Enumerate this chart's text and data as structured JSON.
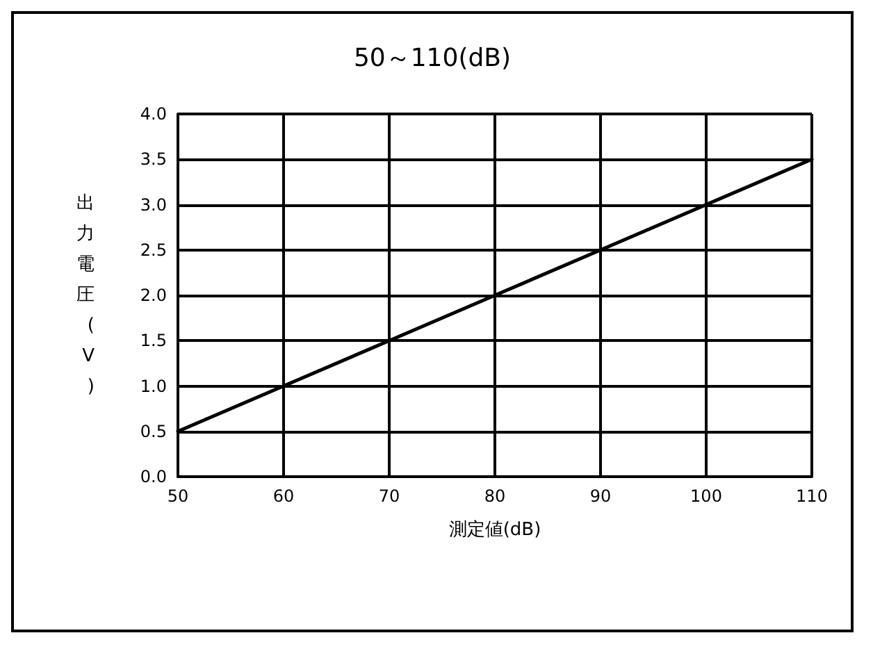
{
  "chart_data": {
    "type": "line",
    "title": "50～110(dB)",
    "xlabel": "測定値(dB)",
    "ylabel": "出力電圧(V)",
    "x": [
      50,
      60,
      70,
      80,
      90,
      100,
      110
    ],
    "series": [
      {
        "color": "#000000",
        "values": [
          0.5,
          1.0,
          1.5,
          2.0,
          2.5,
          3.0,
          3.5
        ]
      }
    ],
    "xlim": [
      50,
      110
    ],
    "xticks": [
      50,
      60,
      70,
      80,
      90,
      100,
      110
    ],
    "ylim": [
      0,
      4
    ],
    "yticks": [
      {
        "value": 0,
        "label": "0.0"
      },
      {
        "value": 0.5,
        "label": "0.5"
      },
      {
        "value": 1,
        "label": "1.0"
      },
      {
        "value": 1.5,
        "label": "1.5"
      },
      {
        "value": 2,
        "label": "2.0"
      },
      {
        "value": 2.5,
        "label": "2.5"
      },
      {
        "value": 3,
        "label": "3.0"
      },
      {
        "value": 3.5,
        "label": "3.5"
      },
      {
        "value": 4,
        "label": "4.0"
      }
    ],
    "grid": true,
    "marker": "none",
    "line_style": "solid"
  }
}
